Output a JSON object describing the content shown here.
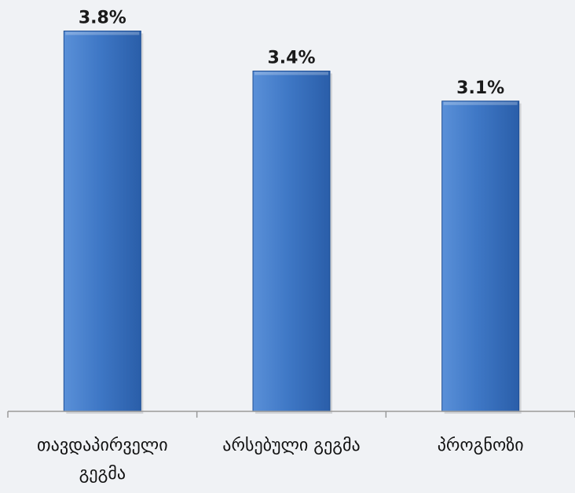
{
  "chart_data": {
    "type": "bar",
    "categories": [
      "თავდაპირველი გეგმა",
      "არსებული გეგმა",
      "პროგნოზი"
    ],
    "category_lines": [
      [
        "თავდაპირველი",
        "გეგმა"
      ],
      [
        "არსებული გეგმა"
      ],
      [
        "პროგნოზი"
      ]
    ],
    "values": [
      3.8,
      3.4,
      3.1
    ],
    "value_labels": [
      "3.8%",
      "3.4%",
      "3.1%"
    ],
    "ylim": [
      0,
      4.1
    ],
    "grid": false,
    "colors": {
      "bar_light": "#5a90d8",
      "bar_mid": "#3f78c6",
      "bar_dark": "#2a5ea9",
      "bar_edge": "#1f4f95",
      "axis": "#9a9a9a",
      "background": "#f0f2f5"
    }
  }
}
